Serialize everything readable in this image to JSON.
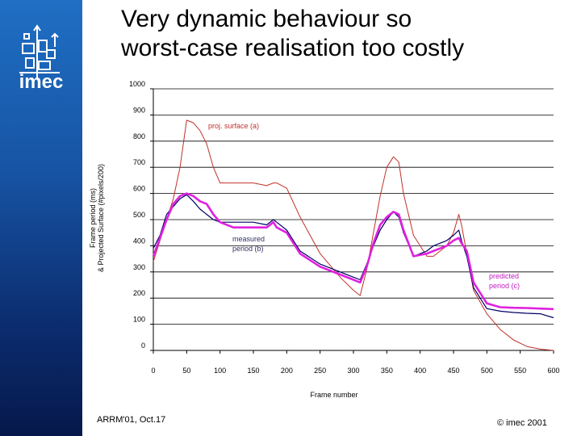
{
  "slide": {
    "title_line1": "Very dynamic behaviour so",
    "title_line2": "worst-case realisation too costly",
    "logo_text": "imec",
    "footer_left": "ARRM'01, Oct.17",
    "footer_right": "© imec 2001"
  },
  "colors": {
    "sidebar": "#1a5aa8",
    "surface_line": "#c0302a",
    "measured_line": "#000066",
    "predicted_line": "#e020e0"
  },
  "chart_data": {
    "type": "line",
    "xlabel": "Frame number",
    "ylabel_line1": "Frame period (ms)",
    "ylabel_line2": "& Projected Surface (#pixels/200)",
    "xlim": [
      0,
      600
    ],
    "ylim": [
      0,
      1000
    ],
    "xticks": [
      0,
      50,
      100,
      150,
      200,
      250,
      300,
      350,
      400,
      450,
      500,
      550,
      600
    ],
    "yticks": [
      0,
      100,
      200,
      300,
      400,
      500,
      600,
      700,
      800,
      900,
      1000
    ],
    "grid": "horizontal",
    "annotations": [
      {
        "text": "proj. surface (a)",
        "series": "a"
      },
      {
        "text": "measured",
        "series": "b"
      },
      {
        "text": "period (b)",
        "series": "b"
      },
      {
        "text": "predicted",
        "series": "c"
      },
      {
        "text": "period (c)",
        "series": "c"
      }
    ],
    "series": [
      {
        "name": "proj. surface (a)",
        "x": [
          0,
          10,
          20,
          30,
          40,
          50,
          60,
          70,
          80,
          90,
          100,
          120,
          150,
          170,
          180,
          185,
          200,
          220,
          250,
          280,
          300,
          310,
          320,
          330,
          340,
          350,
          360,
          368,
          375,
          390,
          410,
          420,
          440,
          450,
          458,
          462,
          470,
          480,
          500,
          520,
          540,
          560,
          580,
          600
        ],
        "y": [
          340,
          420,
          500,
          580,
          700,
          880,
          870,
          840,
          790,
          700,
          640,
          640,
          640,
          630,
          640,
          640,
          620,
          510,
          370,
          280,
          230,
          210,
          310,
          450,
          590,
          700,
          740,
          720,
          600,
          440,
          360,
          360,
          400,
          450,
          520,
          480,
          370,
          230,
          140,
          80,
          40,
          15,
          5,
          0
        ]
      },
      {
        "name": "measured period (b)",
        "x": [
          0,
          10,
          20,
          30,
          40,
          50,
          60,
          70,
          80,
          90,
          100,
          120,
          150,
          170,
          180,
          185,
          200,
          220,
          250,
          280,
          300,
          310,
          320,
          330,
          340,
          350,
          360,
          368,
          375,
          390,
          410,
          420,
          440,
          450,
          458,
          462,
          470,
          480,
          500,
          520,
          540,
          560,
          580,
          600
        ],
        "y": [
          390,
          440,
          520,
          550,
          580,
          595,
          570,
          540,
          520,
          500,
          490,
          490,
          490,
          480,
          500,
          490,
          460,
          380,
          330,
          300,
          280,
          270,
          330,
          400,
          460,
          500,
          530,
          510,
          450,
          360,
          380,
          400,
          420,
          440,
          460,
          420,
          360,
          240,
          160,
          150,
          145,
          142,
          140,
          125
        ]
      },
      {
        "name": "predicted period (c)",
        "x": [
          0,
          10,
          20,
          30,
          40,
          50,
          60,
          70,
          80,
          90,
          100,
          120,
          150,
          170,
          180,
          185,
          200,
          220,
          250,
          280,
          300,
          310,
          320,
          330,
          340,
          350,
          360,
          368,
          375,
          390,
          410,
          420,
          440,
          450,
          458,
          462,
          470,
          480,
          500,
          520,
          540,
          560,
          580,
          600
        ],
        "y": [
          360,
          430,
          500,
          560,
          590,
          600,
          590,
          570,
          560,
          520,
          490,
          470,
          470,
          470,
          490,
          470,
          450,
          370,
          320,
          290,
          270,
          260,
          320,
          410,
          480,
          510,
          530,
          520,
          460,
          360,
          370,
          380,
          400,
          420,
          430,
          410,
          380,
          260,
          180,
          165,
          163,
          162,
          160,
          158
        ]
      }
    ]
  }
}
